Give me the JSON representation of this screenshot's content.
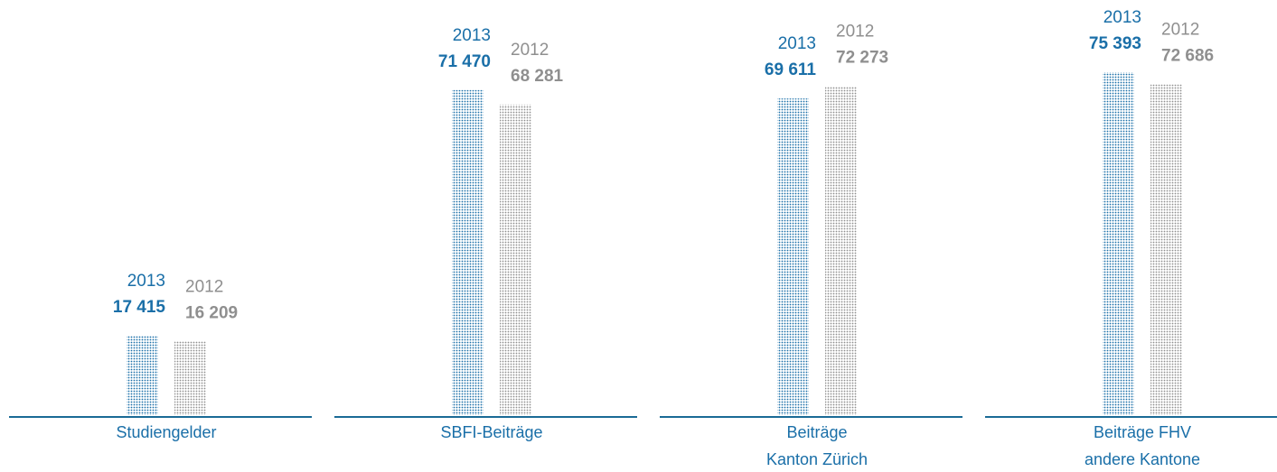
{
  "chart_data": {
    "type": "bar",
    "categories": [
      "Studiengelder",
      "SBFI-Beiträge",
      "Beiträge\nKanton Zürich",
      "Beiträge FHV\nandere Kantone"
    ],
    "series": [
      {
        "name": "2013",
        "color": "#1a6fa8",
        "values": [
          17415,
          71470,
          69611,
          75393
        ],
        "value_labels": [
          "17 415",
          "71 470",
          "69 611",
          "75 393"
        ]
      },
      {
        "name": "2012",
        "color": "#8f8f8f",
        "values": [
          16209,
          68281,
          72273,
          72686
        ],
        "value_labels": [
          "16 209",
          "68 281",
          "72 273",
          "72 686"
        ]
      }
    ]
  }
}
